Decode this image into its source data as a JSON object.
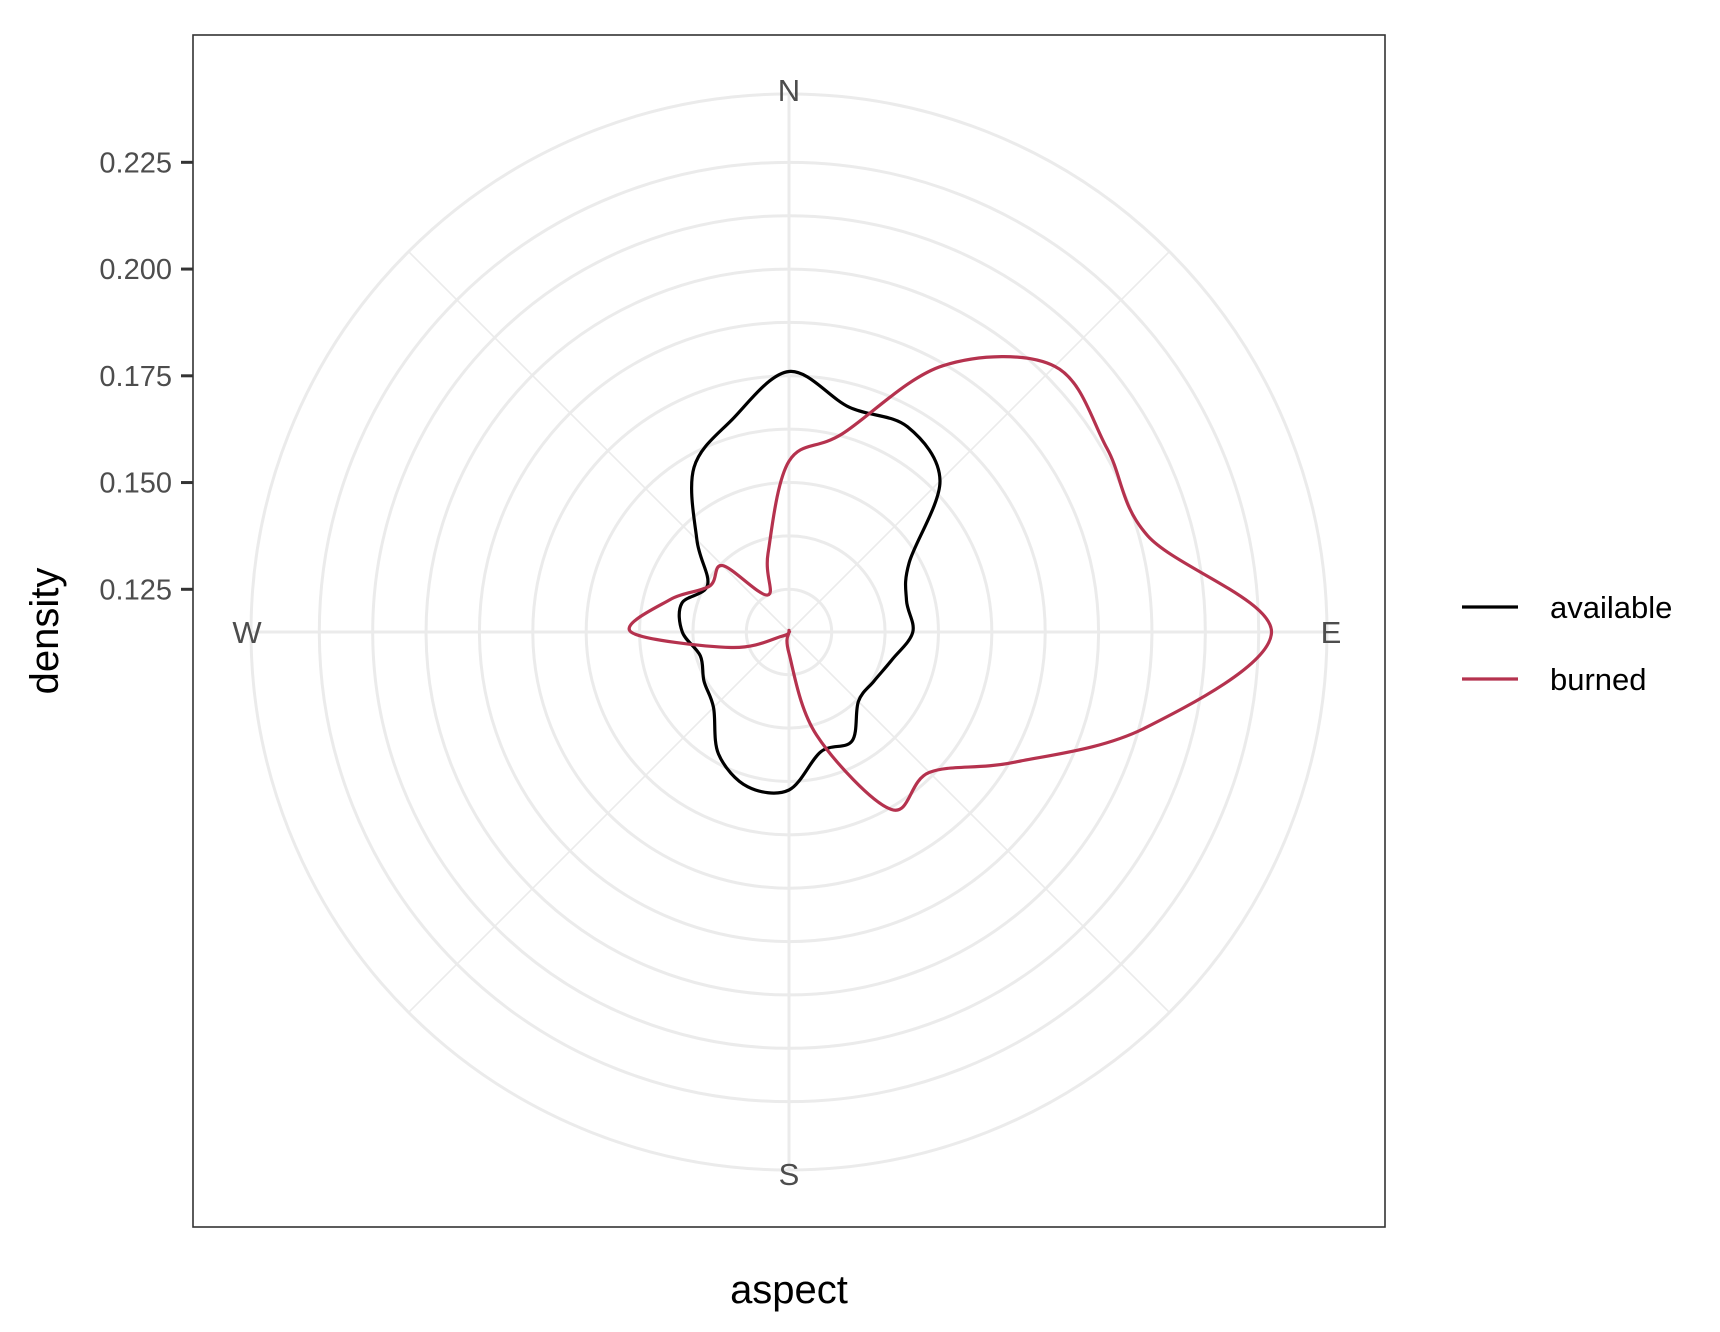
{
  "chart_data": {
    "type": "line",
    "coordinate_system": "polar",
    "xlabel": "aspect",
    "ylabel": "density",
    "direction_labels": [
      "N",
      "E",
      "S",
      "W"
    ],
    "y_ticks": [
      "0.125",
      "0.150",
      "0.175",
      "0.200",
      "0.225"
    ],
    "y_tick_values": [
      0.125,
      0.15,
      0.175,
      0.2,
      0.225
    ],
    "y_origin": 0.115,
    "ylim": [
      0.115,
      0.241
    ],
    "grid": true,
    "legend_position": "right",
    "series": [
      {
        "name": "available",
        "color": "#000000",
        "aspect_deg": [
          0,
          15,
          30,
          45,
          60,
          75,
          90,
          105,
          120,
          135,
          150,
          165,
          180,
          195,
          210,
          225,
          240,
          255,
          270,
          285,
          300,
          315,
          330,
          345
        ],
        "density": [
          0.176,
          0.1695,
          0.1705,
          0.165,
          0.1475,
          0.1435,
          0.144,
          0.14,
          0.138,
          0.138,
          0.1445,
          0.144,
          0.152,
          0.1525,
          0.148,
          0.14,
          0.138,
          0.1365,
          0.14,
          0.141,
          0.137,
          0.1455,
          0.1595,
          0.1665
        ]
      },
      {
        "name": "burned",
        "color": "#b5324e",
        "aspect_deg": [
          0,
          15,
          30,
          45,
          60,
          75,
          90,
          105,
          120,
          135,
          150,
          165,
          180,
          195,
          210,
          225,
          240,
          255,
          270,
          285,
          300,
          315,
          330,
          345
        ],
        "density": [
          0.155,
          0.163,
          0.187,
          0.203,
          0.201,
          0.202,
          0.228,
          0.2015,
          0.176,
          0.1615,
          0.163,
          0.14,
          0.12,
          0.115,
          0.115,
          0.115,
          0.117,
          0.129,
          0.152,
          0.144,
          0.1365,
          0.137,
          0.125,
          0.134
        ]
      }
    ]
  }
}
